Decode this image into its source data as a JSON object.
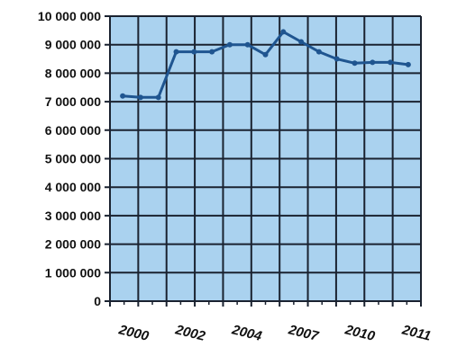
{
  "chart_data": {
    "type": "line",
    "title": "",
    "xlabel": "",
    "ylabel": "",
    "ylim": [
      0,
      10000000
    ],
    "yticks": [
      {
        "value": 0,
        "label": "0"
      },
      {
        "value": 1000000,
        "label": "1 000 000"
      },
      {
        "value": 2000000,
        "label": "2 000 000"
      },
      {
        "value": 3000000,
        "label": "3 000 000"
      },
      {
        "value": 4000000,
        "label": "4 000 000"
      },
      {
        "value": 5000000,
        "label": "5 000 000"
      },
      {
        "value": 6000000,
        "label": "6 000 000"
      },
      {
        "value": 7000000,
        "label": "7 000 000"
      },
      {
        "value": 8000000,
        "label": "8 000 000"
      },
      {
        "value": 9000000,
        "label": "9 000 000"
      },
      {
        "value": 10000000,
        "label": "10 000 000"
      }
    ],
    "xtick_labels": [
      "2000",
      "2002",
      "2004",
      "2007",
      "2010",
      "2011"
    ],
    "grid": true,
    "series": [
      {
        "points": [
          7200000,
          7150000,
          7150000,
          8750000,
          8750000,
          8750000,
          9000000,
          9000000,
          8650000,
          9450000,
          9100000,
          8750000,
          8500000,
          8350000,
          8380000,
          8380000,
          8300000
        ]
      }
    ],
    "colors": {
      "plot_background": "#aad2ef",
      "grid": "#1a2230",
      "line": "#1f5590",
      "blank_cells": "#ffffff"
    }
  }
}
